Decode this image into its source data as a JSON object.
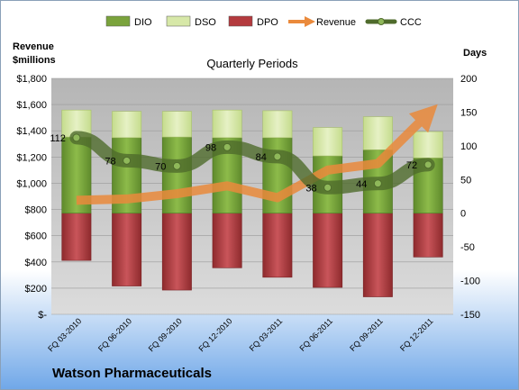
{
  "chart_data": {
    "type": "bar",
    "title": "Quarterly Periods",
    "company": "Watson Pharmaceuticals",
    "left_axis_label_line1": "Revenue",
    "left_axis_label_line2": "$millions",
    "right_axis_label": "Days",
    "categories": [
      "FQ 03-2010",
      "FQ 06-2010",
      "FQ 09-2010",
      "FQ 12-2010",
      "FQ 03-2011",
      "FQ 06-2011",
      "FQ 09-2011",
      "FQ 12-2011"
    ],
    "left_ticks": [
      "$-",
      "$200",
      "$400",
      "$600",
      "$800",
      "$1,000",
      "$1,200",
      "$1,400",
      "$1,600",
      "$1,800"
    ],
    "right_ticks": [
      "-150",
      "-100",
      "-50",
      "0",
      "50",
      "100",
      "150",
      "200"
    ],
    "ylim_left": [
      0,
      1800
    ],
    "ylim_right": [
      -150,
      200
    ],
    "series": [
      {
        "name": "DIO",
        "axis": "right",
        "values": [
          113,
          112,
          113,
          112,
          112,
          85,
          94,
          82
        ]
      },
      {
        "name": "DSO",
        "axis": "right",
        "values": [
          40,
          39,
          38,
          41,
          40,
          42,
          49,
          39
        ]
      },
      {
        "name": "DPO",
        "axis": "right",
        "values": [
          -70,
          -108,
          -114,
          -81,
          -95,
          -110,
          -124,
          -65
        ]
      },
      {
        "name": "Revenue",
        "axis": "left",
        "values": [
          870,
          880,
          920,
          980,
          890,
          1100,
          1150,
          1530
        ]
      },
      {
        "name": "CCC",
        "axis": "right",
        "values": [
          112,
          78,
          70,
          98,
          84,
          38,
          44,
          72
        ]
      }
    ],
    "ccc_labels": [
      "112",
      "78",
      "70",
      "98",
      "84",
      "38",
      "44",
      "72"
    ],
    "colors": {
      "DIO": "#7aa33c",
      "DSO": "#d7e8a8",
      "DPO": "#b43a3e",
      "Revenue": "#ea8a3c",
      "CCC": "#4f6b2c",
      "plot_bg": "#a9a9a9",
      "frame_bg": "#ffffff"
    },
    "legend_position": "top",
    "grid": true
  }
}
